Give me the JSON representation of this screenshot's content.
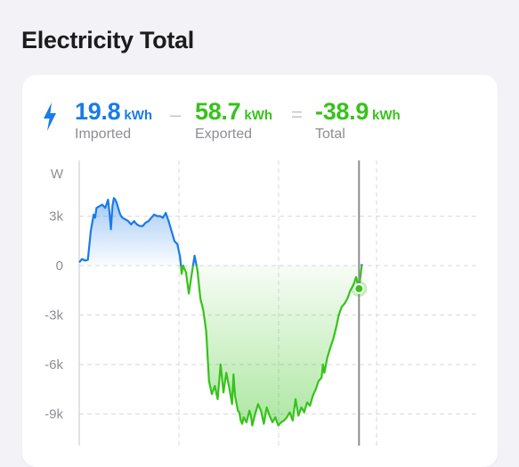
{
  "page": {
    "title": "Electricity Total"
  },
  "stats": {
    "imported": {
      "value": "19.8",
      "unit": "kWh",
      "label": "Imported",
      "color": "#1a7be8"
    },
    "exported": {
      "value": "58.7",
      "unit": "kWh",
      "label": "Exported",
      "color": "#36c31a"
    },
    "total": {
      "value": "-38.9",
      "unit": "kWh",
      "label": "Total",
      "color": "#36c31a"
    },
    "operators": {
      "minus": "–",
      "equals": "="
    }
  },
  "icons": {
    "energy": "lightning-bolt-icon"
  },
  "chart_data": {
    "type": "area",
    "ylabel": "W",
    "ylim": [
      -10000,
      5000
    ],
    "yticks": [
      3000,
      0,
      -3000,
      -6000,
      -9000
    ],
    "ytick_labels": [
      "3k",
      "0",
      "-3k",
      "-6k",
      "-9k"
    ],
    "grid": true,
    "positive_color": "#1a7be8",
    "negative_color": "#36c31a",
    "xlim": [
      0,
      100
    ],
    "marker_x": 97,
    "series": [
      {
        "x": [
          0,
          1,
          2,
          3,
          4,
          5,
          5.5,
          6,
          7,
          8,
          9,
          10,
          10.5,
          11,
          11.5,
          12,
          12.5,
          13,
          14,
          14.5,
          15,
          16,
          17,
          18,
          19,
          20,
          21,
          22,
          23,
          24,
          25,
          26,
          27,
          28,
          29,
          30,
          31,
          32,
          33,
          33.5,
          34,
          35,
          35.5,
          36,
          37,
          38,
          39,
          40,
          41,
          42,
          43,
          43.5,
          44,
          44.5,
          45,
          46,
          47,
          48,
          49,
          50,
          51,
          52,
          53,
          53.5,
          54,
          55,
          55.5,
          56,
          56.5,
          57,
          58,
          59,
          59.5,
          60,
          61,
          62,
          63,
          64,
          65,
          66,
          67,
          68,
          69,
          70,
          71,
          72,
          73,
          74,
          75,
          76,
          77,
          78,
          79,
          80,
          81,
          82,
          83,
          84,
          84.5,
          85,
          86,
          87,
          88,
          89,
          90,
          91,
          92,
          93,
          94,
          95,
          96,
          97,
          98
        ],
        "y": [
          200,
          400,
          300,
          350,
          2100,
          3100,
          2900,
          3500,
          3600,
          3700,
          3500,
          4000,
          3200,
          2200,
          3600,
          4100,
          4000,
          3800,
          3200,
          3000,
          2900,
          2800,
          2700,
          2500,
          2700,
          2500,
          2400,
          2400,
          2600,
          2700,
          2900,
          3100,
          3000,
          3000,
          2900,
          3200,
          2700,
          2100,
          1500,
          1400,
          1300,
          500,
          -500,
          0,
          -400,
          -1700,
          -500,
          600,
          -300,
          -2000,
          -2700,
          -3300,
          -4000,
          -5500,
          -7000,
          -7800,
          -7300,
          -8100,
          -6000,
          -7700,
          -6500,
          -7400,
          -8400,
          -6600,
          -7900,
          -8800,
          -8900,
          -9400,
          -9600,
          -9200,
          -9500,
          -8800,
          -9100,
          -9700,
          -9000,
          -8400,
          -8800,
          -9600,
          -8600,
          -9100,
          -9500,
          -9200,
          -9700,
          -9500,
          -9400,
          -9200,
          -8900,
          -9400,
          -8100,
          -9100,
          -8600,
          -8900,
          -8300,
          -8500,
          -7900,
          -7500,
          -7000,
          -6800,
          -6000,
          -6500,
          -5600,
          -5000,
          -4500,
          -3800,
          -3000,
          -2500,
          -2300,
          -2000,
          -1500,
          -1200,
          -700,
          -1400,
          100
        ]
      }
    ]
  }
}
